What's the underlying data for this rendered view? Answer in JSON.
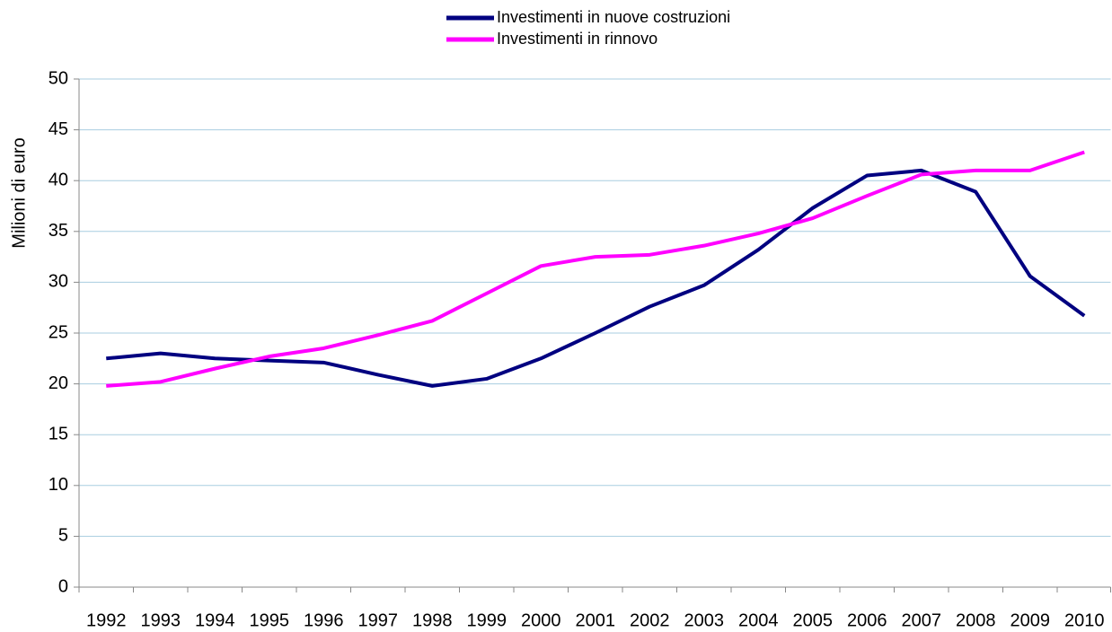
{
  "chart_data": {
    "type": "line",
    "y_label": "Milioni di euro",
    "categories": [
      "1992",
      "1993",
      "1994",
      "1995",
      "1996",
      "1997",
      "1998",
      "1999",
      "2000",
      "2001",
      "2002",
      "2003",
      "2004",
      "2005",
      "2006",
      "2007",
      "2008",
      "2009",
      "2010"
    ],
    "series": [
      {
        "name": "Investimenti in nuove costruzioni",
        "color": "#000080",
        "values": [
          22.5,
          23.0,
          22.5,
          22.3,
          22.1,
          20.9,
          19.8,
          20.5,
          22.5,
          25.0,
          27.6,
          29.7,
          33.2,
          37.3,
          40.5,
          41.0,
          38.9,
          30.6,
          26.7
        ]
      },
      {
        "name": "Investimenti in rinnovo",
        "color": "#ff00ff",
        "values": [
          19.8,
          20.2,
          21.5,
          22.7,
          23.5,
          24.8,
          26.2,
          28.9,
          31.6,
          32.5,
          32.7,
          33.6,
          34.8,
          36.3,
          38.5,
          40.6,
          41.0,
          41.0,
          42.8
        ]
      }
    ],
    "ylim": [
      0,
      50
    ],
    "yticks": [
      0,
      5,
      10,
      15,
      20,
      25,
      30,
      35,
      40,
      45,
      50
    ],
    "grid": true
  }
}
